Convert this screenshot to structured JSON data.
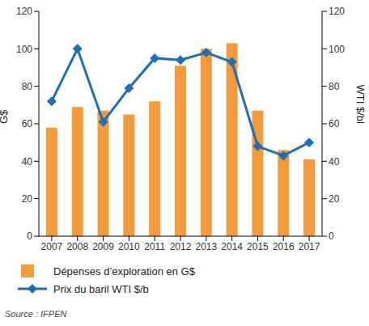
{
  "chart_data": {
    "type": "bar",
    "categories": [
      "2007",
      "2008",
      "2009",
      "2010",
      "2011",
      "2012",
      "2013",
      "2014",
      "2015",
      "2016",
      "2017"
    ],
    "series": [
      {
        "name": "Dépenses d’exploration en G$",
        "type": "bar",
        "color": "#f39a3c",
        "values": [
          58,
          69,
          67,
          65,
          72,
          91,
          100,
          103,
          67,
          46,
          41
        ]
      },
      {
        "name": "Prix du baril WTI $/b",
        "type": "line",
        "axis": "y2",
        "color": "#1f6fb5",
        "marker": "diamond",
        "values": [
          72,
          100,
          61,
          79,
          95,
          94,
          98,
          93,
          48,
          43,
          50
        ]
      }
    ],
    "y_label": "G$",
    "y2_label": "WTI $/bl",
    "ylim": [
      0,
      120
    ],
    "yticks": [
      0,
      20,
      40,
      60,
      80,
      100,
      120
    ],
    "y2lim": [
      0,
      120
    ],
    "y2ticks": [
      0,
      20,
      40,
      60,
      80,
      100,
      120
    ],
    "grid": false,
    "legend": "bottom",
    "source": "Source : IFPEN"
  }
}
